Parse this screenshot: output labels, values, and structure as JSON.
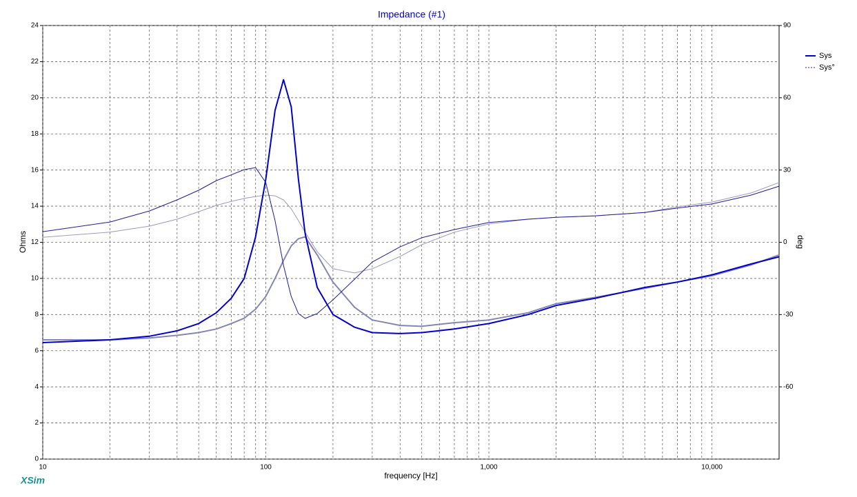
{
  "chart_data": {
    "type": "line",
    "title": "Impedance (#1)",
    "xlabel": "frequency [Hz]",
    "ylabel": "Ohms",
    "y2label": "deg",
    "watermark": "XSim",
    "xscale": "log",
    "grid": true,
    "legend": "right",
    "xlim": [
      10,
      20000
    ],
    "xticks": [
      10,
      100,
      {
        "value": 1000,
        "label": "1,000"
      },
      {
        "value": 10000,
        "label": "10,000"
      }
    ],
    "xminor": [
      20,
      30,
      40,
      50,
      60,
      70,
      80,
      90,
      200,
      300,
      400,
      500,
      600,
      700,
      800,
      900,
      2000,
      3000,
      4000,
      5000,
      6000,
      7000,
      8000,
      9000
    ],
    "ylim": [
      0,
      24
    ],
    "yticks": [
      0,
      2,
      4,
      6,
      8,
      10,
      12,
      14,
      16,
      18,
      20,
      22,
      24
    ],
    "y2lim": [
      -90,
      90
    ],
    "y2ticks": [
      -60,
      -30,
      0,
      30,
      60,
      90
    ],
    "x": [
      10,
      20,
      30,
      40,
      50,
      60,
      70,
      80,
      90,
      100,
      110,
      120,
      130,
      140,
      150,
      170,
      200,
      250,
      300,
      400,
      500,
      700,
      1000,
      1500,
      2000,
      3000,
      5000,
      7000,
      10000,
      15000,
      20000
    ],
    "series": [
      {
        "color": "#8585b5",
        "width": 2,
        "values": [
          6.6,
          6.6,
          6.7,
          6.85,
          7.0,
          7.2,
          7.5,
          7.8,
          8.3,
          9.0,
          10.0,
          11.0,
          11.8,
          12.2,
          12.3,
          11.3,
          9.8,
          8.4,
          7.7,
          7.4,
          7.35,
          7.55,
          7.7,
          8.1,
          8.6,
          8.95,
          9.45,
          9.8,
          10.15,
          10.75,
          11.3
        ]
      },
      {
        "color": "#9a9ac0",
        "width": 1,
        "axis": "y2",
        "values": [
          2.1,
          4.2,
          6.7,
          9.6,
          12.7,
          15.3,
          17.0,
          18.2,
          19.0,
          19.6,
          19.3,
          17.6,
          13.9,
          9.0,
          4.2,
          -3.9,
          -11.0,
          -12.7,
          -11.0,
          -5.9,
          -1.0,
          4.2,
          7.6,
          9.6,
          10.4,
          11.0,
          12.4,
          14.7,
          16.7,
          20.5,
          24.8
        ]
      },
      {
        "name": "Sys",
        "color": "#0000cc",
        "width": 2,
        "values": [
          6.45,
          6.6,
          6.8,
          7.1,
          7.5,
          8.1,
          8.9,
          10.0,
          12.3,
          15.5,
          19.3,
          21.0,
          19.5,
          15.5,
          12.5,
          9.5,
          8.0,
          7.3,
          7.0,
          6.95,
          7.0,
          7.2,
          7.5,
          8.0,
          8.5,
          8.9,
          9.5,
          9.8,
          10.2,
          10.8,
          11.2
        ]
      },
      {
        "name": "Sys°",
        "color": "#1c1ca0",
        "width": 1,
        "dash": true,
        "axis": "y2",
        "values": [
          4.4,
          8.4,
          13.0,
          17.6,
          21.6,
          25.6,
          28.0,
          30.2,
          31.0,
          24.8,
          9.0,
          -9.6,
          -22.5,
          -29.6,
          -31.6,
          -29.6,
          -23.9,
          -15.3,
          -8.2,
          -1.9,
          1.9,
          5.3,
          8.2,
          9.6,
          10.4,
          11.0,
          12.4,
          14.2,
          15.9,
          19.6,
          23.3
        ]
      }
    ]
  }
}
